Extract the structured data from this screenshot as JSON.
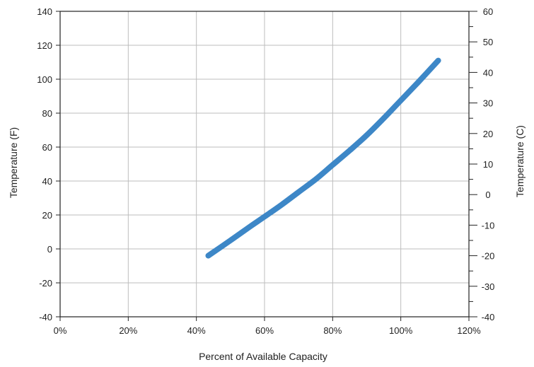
{
  "chart_data": {
    "type": "line",
    "xlabel": "Percent of Available Capacity",
    "ylabel": "Temperature (F)",
    "ylabel_right": "Temperature (C)",
    "xlim": [
      0,
      120
    ],
    "ylim": [
      -40,
      140
    ],
    "ylim_right": [
      -40,
      60
    ],
    "x_ticks": [
      "0%",
      "20%",
      "40%",
      "60%",
      "80%",
      "100%",
      "120%"
    ],
    "y_ticks": [
      "140",
      "120",
      "100",
      "80",
      "60",
      "40",
      "20",
      "0",
      "-20",
      "-40"
    ],
    "y_ticks_right": [
      "60",
      "50",
      "40",
      "30",
      "20",
      "10",
      "0",
      "-10",
      "-20",
      "-30",
      "-40"
    ],
    "grid": true,
    "series": [
      {
        "color": "#3d87c7",
        "x": [
          43.5,
          50,
          56,
          60,
          65,
          70,
          75,
          80,
          85,
          90,
          95,
          100,
          105,
          111
        ],
        "y": [
          -4,
          5,
          13.5,
          19,
          26,
          33.5,
          41,
          49.5,
          58,
          67,
          77,
          87.5,
          98,
          111
        ]
      }
    ]
  }
}
